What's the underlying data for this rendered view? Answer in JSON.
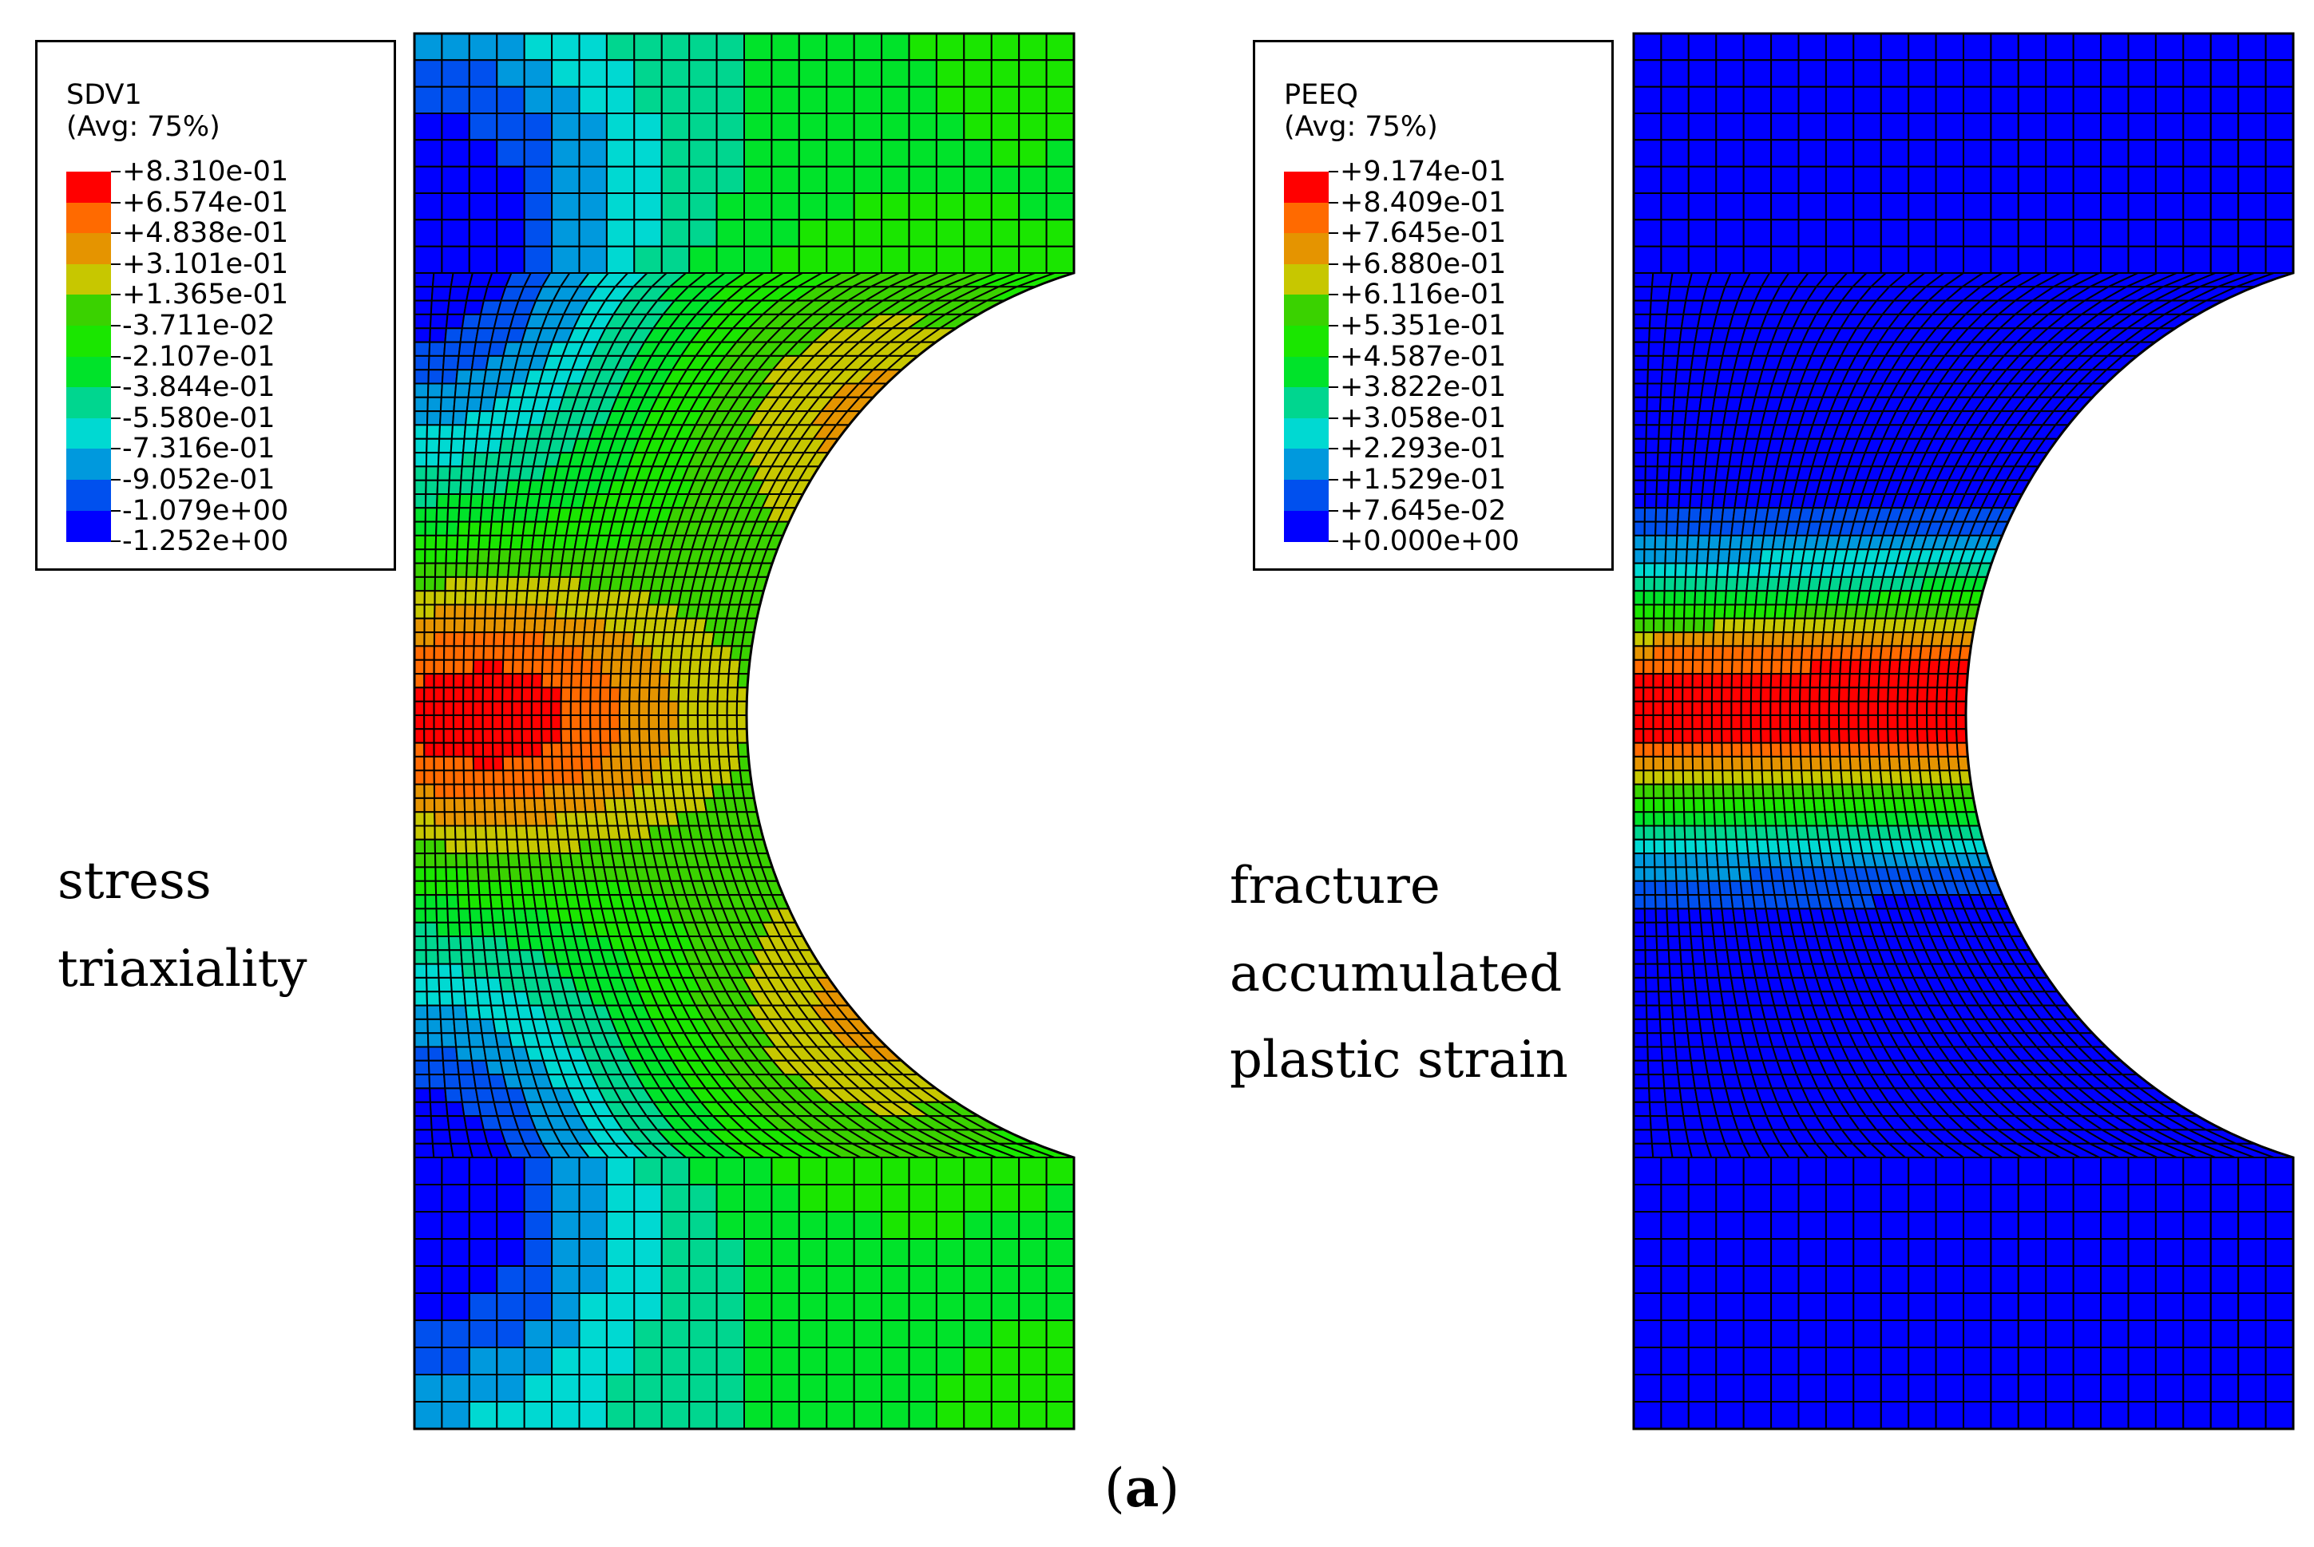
{
  "left_panel": {
    "legend": {
      "variable": "SDV1",
      "averaging": "(Avg: 75%)",
      "levels": [
        "+8.310e-01",
        "+6.574e-01",
        "+4.838e-01",
        "+3.101e-01",
        "+1.365e-01",
        "-3.711e-02",
        "-2.107e-01",
        "-3.844e-01",
        "-5.580e-01",
        "-7.316e-01",
        "-9.052e-01",
        "-1.079e+00",
        "-1.252e+00"
      ]
    },
    "caption_lines": [
      "stress",
      "triaxiality"
    ]
  },
  "right_panel": {
    "legend": {
      "variable": "PEEQ",
      "averaging": "(Avg: 75%)",
      "levels": [
        "+9.174e-01",
        "+8.409e-01",
        "+7.645e-01",
        "+6.880e-01",
        "+6.116e-01",
        "+5.351e-01",
        "+4.587e-01",
        "+3.822e-01",
        "+3.058e-01",
        "+2.293e-01",
        "+1.529e-01",
        "+7.645e-02",
        "+0.000e+00"
      ]
    },
    "caption_lines": [
      "fracture",
      "accumulated",
      "plastic strain"
    ]
  },
  "colormap": [
    "#ff0000",
    "#ff6a00",
    "#e59400",
    "#c7c700",
    "#3ad200",
    "#1ae600",
    "#00e32a",
    "#00d68f",
    "#00d9d2",
    "#0099dd",
    "#0050ee",
    "#0000ff"
  ],
  "figure_label": {
    "open": "(",
    "letter": "a",
    "close": ")"
  }
}
